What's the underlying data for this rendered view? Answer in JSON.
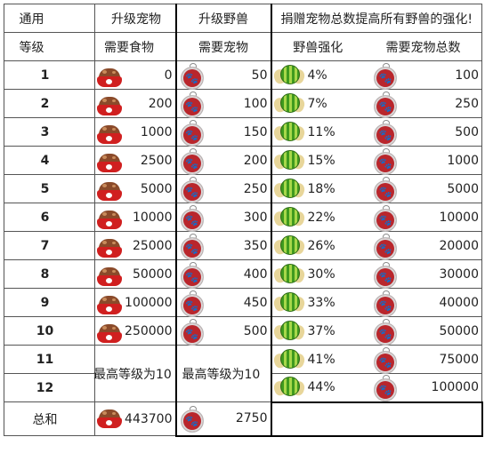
{
  "headers": {
    "row1": {
      "general": "通用",
      "upgrade_pet": "升级宠物",
      "upgrade_beast": "升级野兽",
      "donate_note": "捐赠宠物总数提高所有野兽的强化!"
    },
    "row2": {
      "level": "等级",
      "food_needed": "需要食物",
      "pets_needed": "需要宠物",
      "beast_boost": "野兽强化",
      "total_pets_needed": "需要宠物总数"
    }
  },
  "rows": [
    {
      "level": "1",
      "food": "0",
      "pets": "50",
      "boost": "4%",
      "total": "100"
    },
    {
      "level": "2",
      "food": "200",
      "pets": "100",
      "boost": "7%",
      "total": "250"
    },
    {
      "level": "3",
      "food": "1000",
      "pets": "150",
      "boost": "11%",
      "total": "500"
    },
    {
      "level": "4",
      "food": "2500",
      "pets": "200",
      "boost": "15%",
      "total": "1000"
    },
    {
      "level": "5",
      "food": "5000",
      "pets": "250",
      "boost": "18%",
      "total": "5000"
    },
    {
      "level": "6",
      "food": "10000",
      "pets": "300",
      "boost": "22%",
      "total": "10000"
    },
    {
      "level": "7",
      "food": "25000",
      "pets": "350",
      "boost": "26%",
      "total": "20000"
    },
    {
      "level": "8",
      "food": "50000",
      "pets": "400",
      "boost": "30%",
      "total": "30000"
    },
    {
      "level": "9",
      "food": "100000",
      "pets": "450",
      "boost": "33%",
      "total": "40000"
    },
    {
      "level": "10",
      "food": "250000",
      "pets": "500",
      "boost": "37%",
      "total": "50000"
    },
    {
      "level": "11",
      "boost": "41%",
      "total": "75000"
    },
    {
      "level": "12",
      "boost": "44%",
      "total": "100000"
    }
  ],
  "max_level_text": "最高等级为10",
  "total_row": {
    "label": "总和",
    "food": "443700",
    "pets": "2750"
  },
  "icons": {
    "food": "food-bowl-icon",
    "pet": "paw-tag-icon",
    "boost": "winged-watermelon-icon"
  }
}
